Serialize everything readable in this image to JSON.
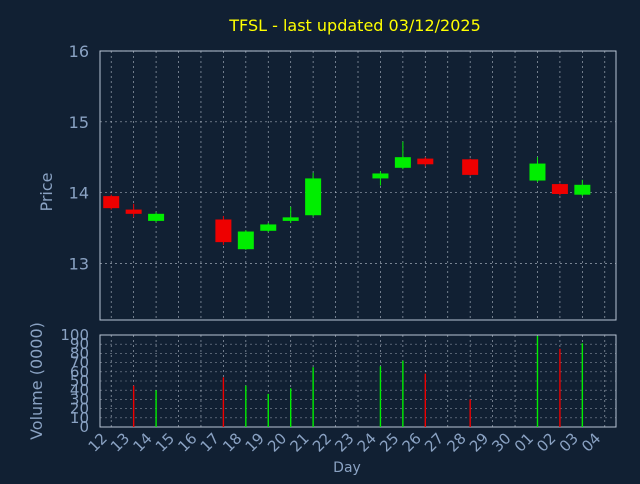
{
  "colors": {
    "background": "#112033",
    "plot_frame": "#b7c3d4",
    "grid": "#c8d0dc",
    "title": "#ffff00",
    "axis_text": "#8aa2c3",
    "up": "#00ee00",
    "down": "#ee0000"
  },
  "chart_data": [
    {
      "type": "candlestick",
      "title": "TFSL - last updated 03/12/2025",
      "ylabel": "Price",
      "ylim": [
        12.2,
        16.0
      ],
      "yticks": [
        "13",
        "14",
        "15",
        "16"
      ],
      "grid": true,
      "dates": [
        "12",
        "13",
        "14",
        "15",
        "16",
        "17",
        "18",
        "19",
        "20",
        "21",
        "22",
        "23",
        "24",
        "25",
        "26",
        "27",
        "28",
        "29",
        "30",
        "01",
        "02",
        "03",
        "04"
      ],
      "candles": [
        {
          "date": "12",
          "open": 13.95,
          "close": 13.78,
          "high": 13.97,
          "low": 13.76
        },
        {
          "date": "13",
          "open": 13.76,
          "close": 13.7,
          "high": 13.84,
          "low": 13.65
        },
        {
          "date": "14",
          "open": 13.6,
          "close": 13.7,
          "high": 13.72,
          "low": 13.58
        },
        {
          "date": "17",
          "open": 13.62,
          "close": 13.3,
          "high": 13.67,
          "low": 13.26
        },
        {
          "date": "18",
          "open": 13.2,
          "close": 13.45,
          "high": 13.47,
          "low": 13.19
        },
        {
          "date": "19",
          "open": 13.46,
          "close": 13.55,
          "high": 13.57,
          "low": 13.44
        },
        {
          "date": "20",
          "open": 13.6,
          "close": 13.65,
          "high": 13.8,
          "low": 13.57
        },
        {
          "date": "21",
          "open": 13.68,
          "close": 14.2,
          "high": 14.28,
          "low": 13.66
        },
        {
          "date": "24",
          "open": 14.2,
          "close": 14.27,
          "high": 14.3,
          "low": 14.1
        },
        {
          "date": "25",
          "open": 14.35,
          "close": 14.5,
          "high": 14.72,
          "low": 14.33
        },
        {
          "date": "26",
          "open": 14.48,
          "close": 14.4,
          "high": 14.5,
          "low": 14.37
        },
        {
          "date": "28",
          "open": 14.47,
          "close": 14.25,
          "high": 14.48,
          "low": 14.24
        },
        {
          "date": "01",
          "open": 14.17,
          "close": 14.41,
          "high": 14.5,
          "low": 14.15
        },
        {
          "date": "02",
          "open": 14.12,
          "close": 13.98,
          "high": 14.13,
          "low": 13.96
        },
        {
          "date": "03",
          "open": 13.97,
          "close": 14.11,
          "high": 14.18,
          "low": 13.95
        }
      ]
    },
    {
      "type": "bar",
      "xlabel": "Day",
      "ylabel": "Volume (0000)",
      "ylim": [
        0,
        100
      ],
      "yticks": [
        "0",
        "10",
        "20",
        "30",
        "40",
        "50",
        "60",
        "70",
        "80",
        "90",
        "100"
      ],
      "grid": true,
      "bars": [
        {
          "date": "13",
          "value": 45,
          "direction": "down"
        },
        {
          "date": "14",
          "value": 40,
          "direction": "up"
        },
        {
          "date": "17",
          "value": 54,
          "direction": "down"
        },
        {
          "date": "18",
          "value": 45,
          "direction": "up"
        },
        {
          "date": "19",
          "value": 36,
          "direction": "up"
        },
        {
          "date": "20",
          "value": 42,
          "direction": "up"
        },
        {
          "date": "21",
          "value": 65,
          "direction": "up"
        },
        {
          "date": "24",
          "value": 66,
          "direction": "up"
        },
        {
          "date": "25",
          "value": 72,
          "direction": "up"
        },
        {
          "date": "26",
          "value": 58,
          "direction": "down"
        },
        {
          "date": "28",
          "value": 30,
          "direction": "down"
        },
        {
          "date": "01",
          "value": 99,
          "direction": "up"
        },
        {
          "date": "02",
          "value": 85,
          "direction": "down"
        },
        {
          "date": "03",
          "value": 91,
          "direction": "up"
        }
      ]
    }
  ]
}
